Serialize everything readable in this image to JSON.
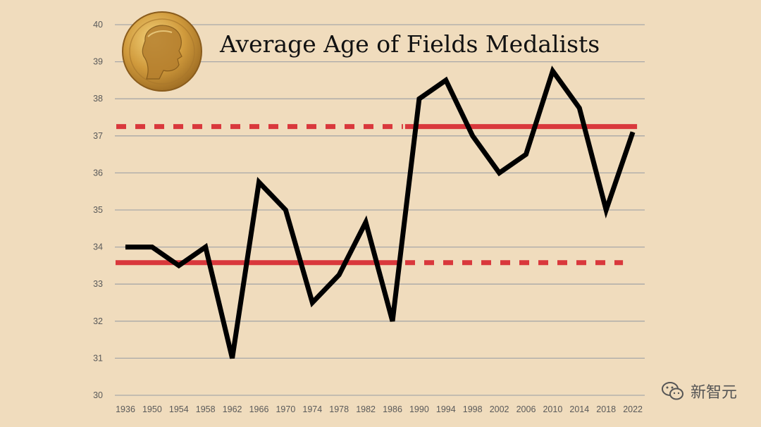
{
  "chart_data": {
    "type": "line",
    "title": "Average Age of Fields Medalists",
    "xlabel": "",
    "ylabel": "",
    "categories": [
      "1936",
      "1950",
      "1954",
      "1958",
      "1962",
      "1966",
      "1970",
      "1974",
      "1978",
      "1982",
      "1986",
      "1990",
      "1994",
      "1998",
      "2002",
      "2006",
      "2010",
      "2014",
      "2018",
      "2022"
    ],
    "series": [
      {
        "name": "Average age",
        "values": [
          34,
          34,
          33.5,
          34,
          31,
          35.75,
          35,
          32.5,
          33.25,
          34.67,
          32,
          38,
          38.5,
          37,
          36,
          36.5,
          38.75,
          37.75,
          35,
          37.1
        ]
      }
    ],
    "reference_lines": [
      {
        "name": "avg-before-1990",
        "value": 33.58,
        "solid_from": "1936",
        "solid_to": "1986",
        "dashed_to": "2022"
      },
      {
        "name": "avg-from-1990",
        "value": 37.25,
        "dashed_from": "1936",
        "solid_from": "1990",
        "solid_to": "2022"
      }
    ],
    "y_ticks": [
      30,
      31,
      32,
      33,
      34,
      35,
      36,
      37,
      38,
      39,
      40
    ],
    "ylim": [
      30,
      40
    ],
    "grid": true,
    "colors": {
      "line": "#000000",
      "reference": "#d9383c",
      "grid": "#a8a8a8"
    }
  },
  "medal_icon": "fields-medal-icon",
  "watermark": {
    "icon": "wechat-icon",
    "text": "新智元"
  }
}
